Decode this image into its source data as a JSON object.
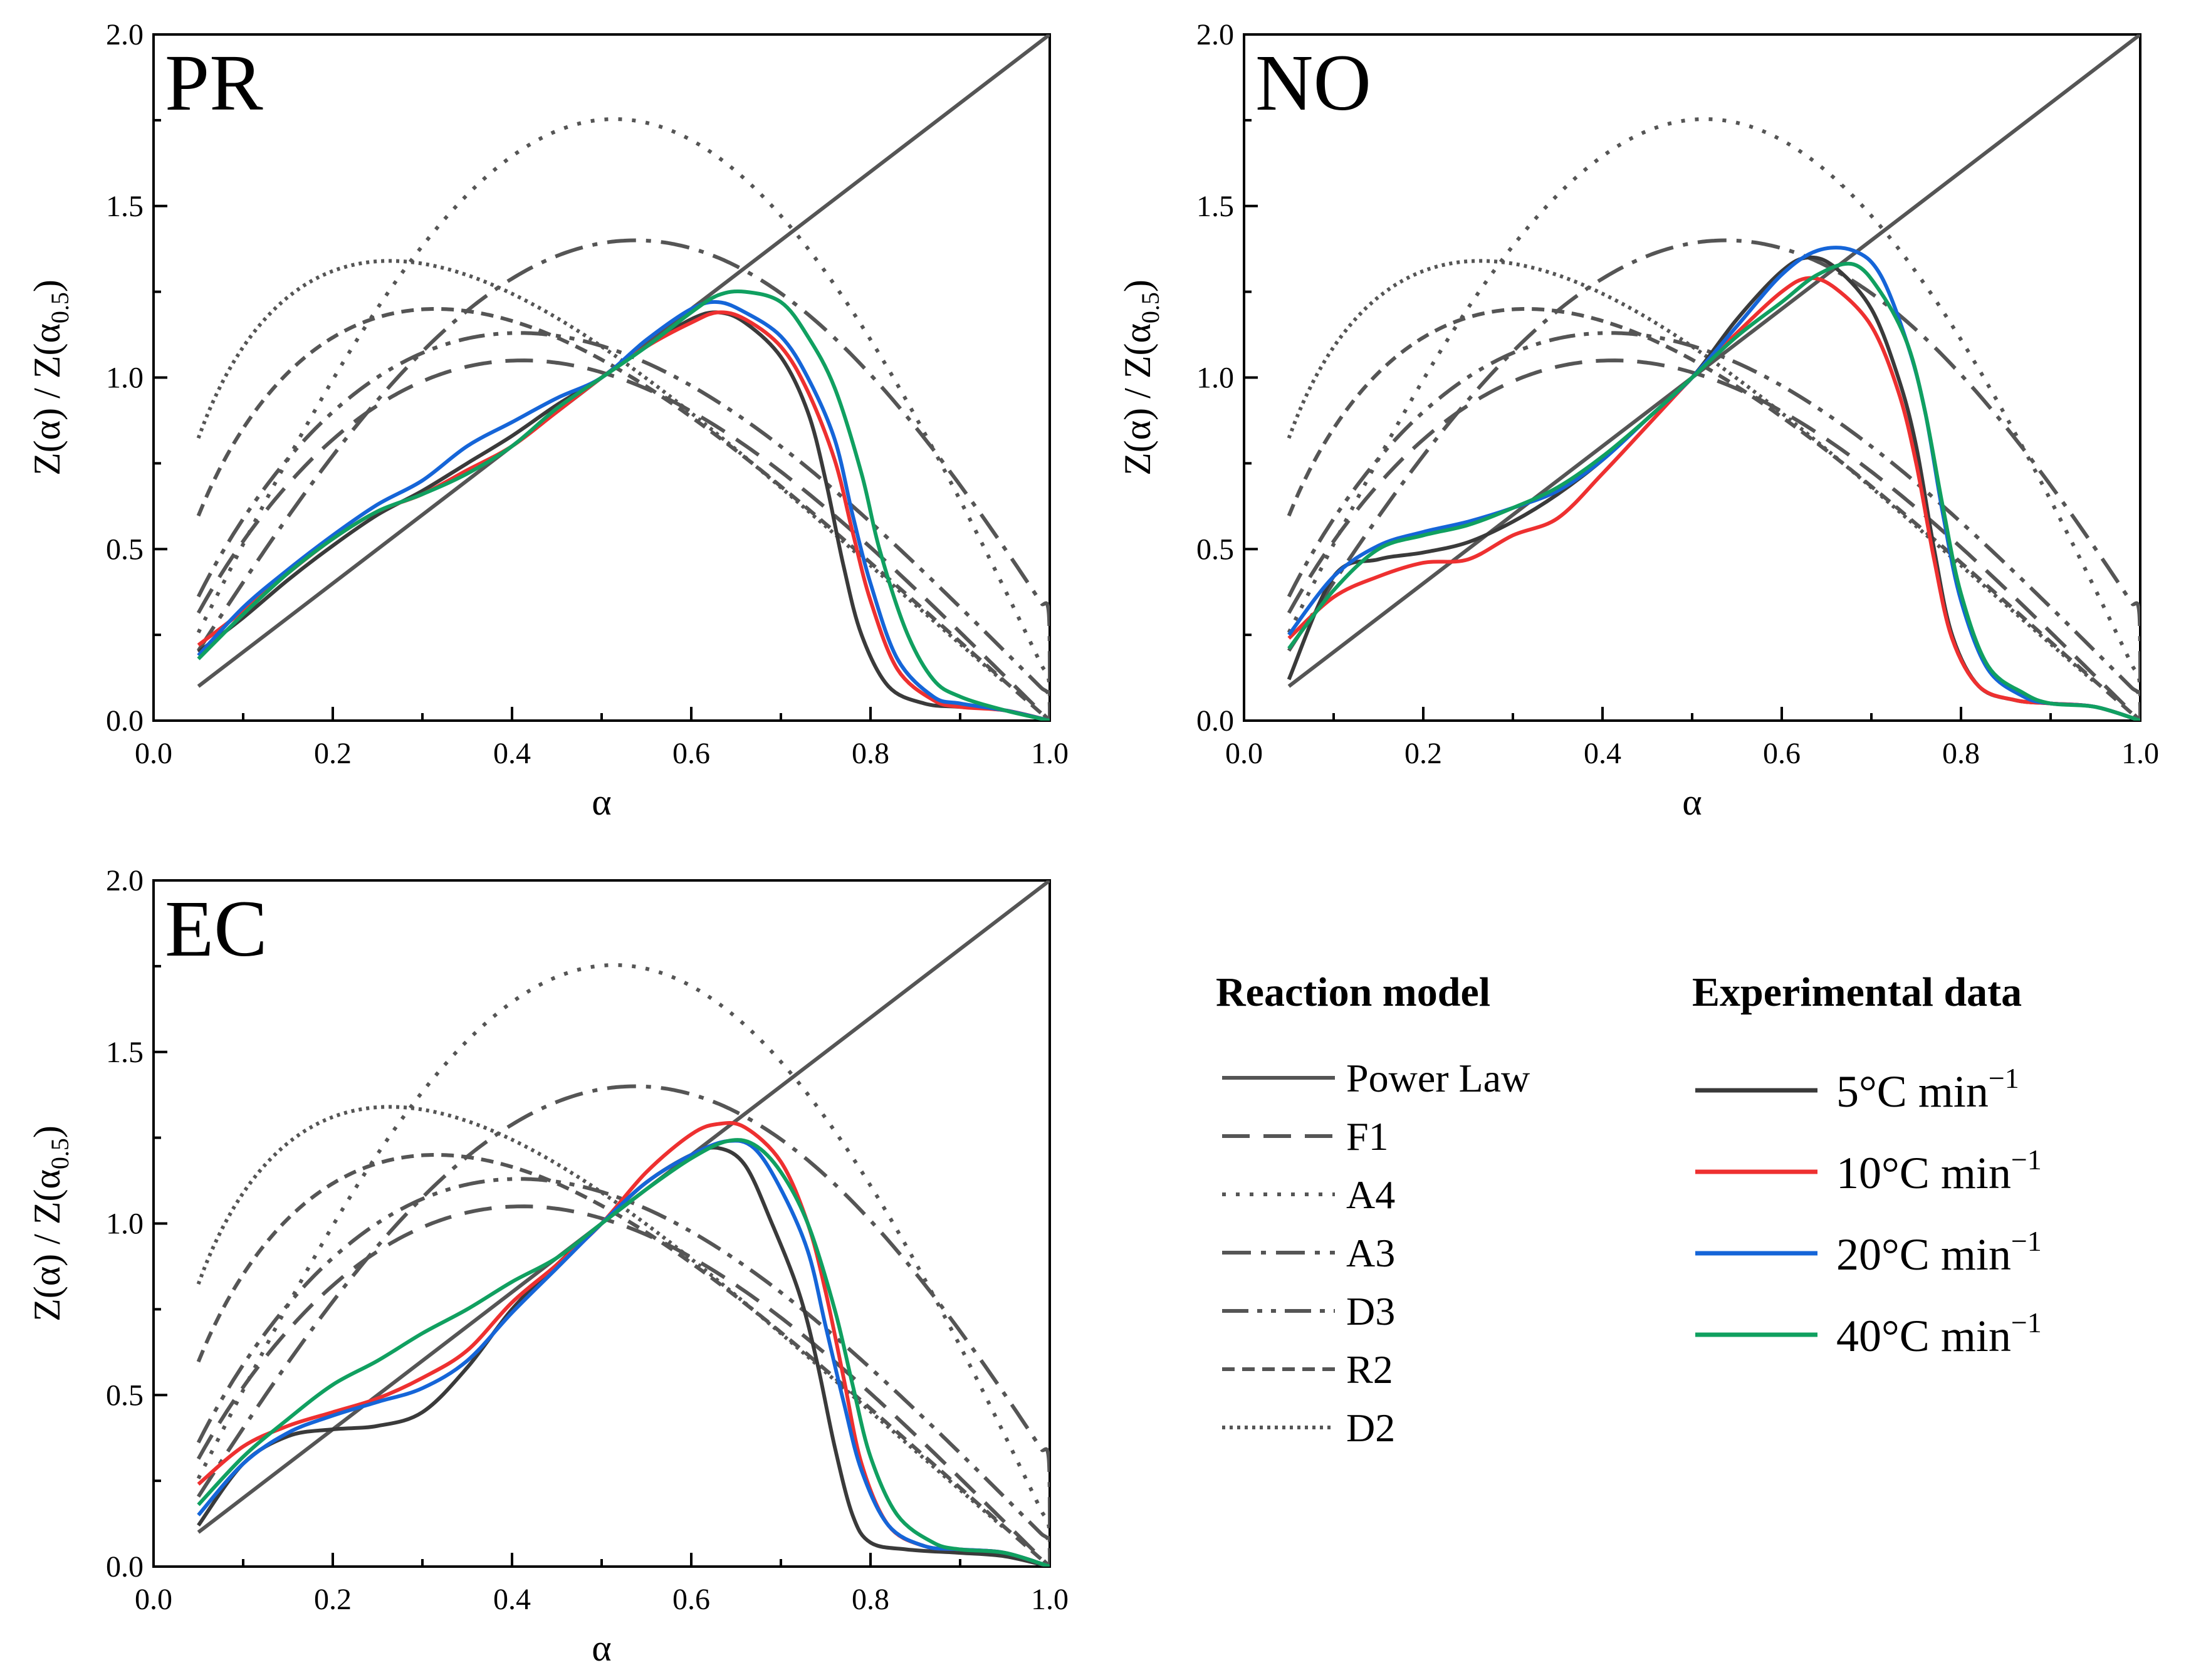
{
  "chart_data": [
    {
      "type": "line",
      "title": "PR",
      "xlabel": "α",
      "ylabel": "Z(α) / Z(α0.5)",
      "xlim": [
        0.0,
        1.0
      ],
      "ylim": [
        0.0,
        2.0
      ],
      "xticks": [
        "0.0",
        "0.2",
        "0.4",
        "0.6",
        "0.8",
        "1.0"
      ],
      "yticks": [
        "0.0",
        "0.5",
        "1.0",
        "1.5",
        "2.0"
      ],
      "experimental": [
        {
          "name": "5°C min⁻¹",
          "x": [
            0.05,
            0.1,
            0.15,
            0.2,
            0.25,
            0.3,
            0.35,
            0.4,
            0.45,
            0.5,
            0.55,
            0.6,
            0.63,
            0.66,
            0.7,
            0.73,
            0.75,
            0.77,
            0.79,
            0.82,
            0.86,
            0.9,
            0.95,
            1.0
          ],
          "y": [
            0.2,
            0.3,
            0.41,
            0.51,
            0.6,
            0.67,
            0.75,
            0.83,
            0.92,
            1.0,
            1.09,
            1.17,
            1.19,
            1.16,
            1.06,
            0.9,
            0.7,
            0.45,
            0.25,
            0.1,
            0.05,
            0.04,
            0.03,
            0.0
          ]
        },
        {
          "name": "10°C min⁻¹",
          "x": [
            0.05,
            0.1,
            0.15,
            0.2,
            0.25,
            0.3,
            0.35,
            0.4,
            0.45,
            0.5,
            0.55,
            0.6,
            0.63,
            0.66,
            0.7,
            0.73,
            0.76,
            0.78,
            0.8,
            0.83,
            0.87,
            0.9,
            0.95,
            1.0
          ],
          "y": [
            0.22,
            0.32,
            0.43,
            0.53,
            0.61,
            0.66,
            0.73,
            0.8,
            0.9,
            1.0,
            1.09,
            1.16,
            1.19,
            1.17,
            1.09,
            0.96,
            0.76,
            0.55,
            0.35,
            0.15,
            0.06,
            0.04,
            0.03,
            0.0
          ]
        },
        {
          "name": "20°C min⁻¹",
          "x": [
            0.05,
            0.1,
            0.15,
            0.2,
            0.25,
            0.3,
            0.35,
            0.4,
            0.45,
            0.5,
            0.55,
            0.6,
            0.63,
            0.66,
            0.7,
            0.73,
            0.76,
            0.78,
            0.8,
            0.83,
            0.87,
            0.9,
            0.95,
            1.0
          ],
          "y": [
            0.19,
            0.33,
            0.44,
            0.54,
            0.63,
            0.7,
            0.8,
            0.87,
            0.94,
            1.0,
            1.11,
            1.2,
            1.22,
            1.19,
            1.12,
            1.0,
            0.82,
            0.6,
            0.4,
            0.18,
            0.07,
            0.05,
            0.03,
            0.0
          ]
        },
        {
          "name": "40°C min⁻¹",
          "x": [
            0.05,
            0.1,
            0.15,
            0.2,
            0.25,
            0.3,
            0.35,
            0.4,
            0.45,
            0.5,
            0.55,
            0.6,
            0.63,
            0.66,
            0.7,
            0.73,
            0.76,
            0.79,
            0.81,
            0.84,
            0.87,
            0.9,
            0.95,
            1.0
          ],
          "y": [
            0.18,
            0.31,
            0.43,
            0.53,
            0.61,
            0.66,
            0.72,
            0.8,
            0.91,
            1.0,
            1.09,
            1.19,
            1.24,
            1.25,
            1.22,
            1.12,
            0.97,
            0.72,
            0.5,
            0.26,
            0.12,
            0.07,
            0.03,
            0.0
          ]
        }
      ]
    },
    {
      "type": "line",
      "title": "NO",
      "xlabel": "α",
      "ylabel": "Z(α) / Z(α0.5)",
      "xlim": [
        0.0,
        1.0
      ],
      "ylim": [
        0.0,
        2.0
      ],
      "xticks": [
        "0.0",
        "0.2",
        "0.4",
        "0.6",
        "0.8",
        "1.0"
      ],
      "yticks": [
        "0.0",
        "0.5",
        "1.0",
        "1.5",
        "2.0"
      ],
      "experimental": [
        {
          "name": "5°C min⁻¹",
          "x": [
            0.05,
            0.1,
            0.15,
            0.2,
            0.25,
            0.3,
            0.35,
            0.4,
            0.45,
            0.5,
            0.55,
            0.6,
            0.63,
            0.66,
            0.7,
            0.73,
            0.75,
            0.77,
            0.79,
            0.82,
            0.86,
            0.9,
            0.95,
            1.0
          ],
          "y": [
            0.12,
            0.42,
            0.47,
            0.49,
            0.52,
            0.58,
            0.66,
            0.76,
            0.88,
            1.0,
            1.17,
            1.31,
            1.35,
            1.32,
            1.2,
            1.0,
            0.8,
            0.5,
            0.25,
            0.1,
            0.06,
            0.05,
            0.04,
            0.0
          ]
        },
        {
          "name": "10°C min⁻¹",
          "x": [
            0.05,
            0.1,
            0.15,
            0.2,
            0.25,
            0.3,
            0.35,
            0.4,
            0.45,
            0.5,
            0.55,
            0.6,
            0.63,
            0.66,
            0.7,
            0.73,
            0.75,
            0.77,
            0.79,
            0.82,
            0.86,
            0.9,
            0.95,
            1.0
          ],
          "y": [
            0.24,
            0.36,
            0.42,
            0.46,
            0.47,
            0.54,
            0.59,
            0.72,
            0.86,
            1.0,
            1.13,
            1.25,
            1.29,
            1.26,
            1.15,
            0.96,
            0.75,
            0.47,
            0.24,
            0.1,
            0.06,
            0.05,
            0.04,
            0.0
          ]
        },
        {
          "name": "20°C min⁻¹",
          "x": [
            0.05,
            0.1,
            0.15,
            0.2,
            0.25,
            0.3,
            0.35,
            0.4,
            0.45,
            0.5,
            0.55,
            0.6,
            0.64,
            0.68,
            0.71,
            0.74,
            0.76,
            0.78,
            0.8,
            0.83,
            0.87,
            0.9,
            0.95,
            1.0
          ],
          "y": [
            0.25,
            0.42,
            0.51,
            0.55,
            0.58,
            0.62,
            0.67,
            0.76,
            0.88,
            1.0,
            1.15,
            1.3,
            1.37,
            1.37,
            1.3,
            1.1,
            0.9,
            0.6,
            0.35,
            0.15,
            0.07,
            0.05,
            0.04,
            0.0
          ]
        },
        {
          "name": "40°C min⁻¹",
          "x": [
            0.05,
            0.1,
            0.15,
            0.2,
            0.25,
            0.3,
            0.35,
            0.4,
            0.45,
            0.5,
            0.55,
            0.6,
            0.64,
            0.68,
            0.71,
            0.74,
            0.76,
            0.78,
            0.8,
            0.83,
            0.87,
            0.9,
            0.95,
            1.0
          ],
          "y": [
            0.21,
            0.38,
            0.5,
            0.54,
            0.57,
            0.62,
            0.68,
            0.77,
            0.88,
            1.0,
            1.12,
            1.22,
            1.3,
            1.33,
            1.25,
            1.1,
            0.9,
            0.62,
            0.37,
            0.16,
            0.08,
            0.05,
            0.04,
            0.0
          ]
        }
      ]
    },
    {
      "type": "line",
      "title": "EC",
      "xlabel": "α",
      "ylabel": "Z(α) / Z(α0.5)",
      "xlim": [
        0.0,
        1.0
      ],
      "ylim": [
        0.0,
        2.0
      ],
      "xticks": [
        "0.0",
        "0.2",
        "0.4",
        "0.6",
        "0.8",
        "1.0"
      ],
      "yticks": [
        "0.0",
        "0.5",
        "1.0",
        "1.5",
        "2.0"
      ],
      "experimental": [
        {
          "name": "5°C min⁻¹",
          "x": [
            0.05,
            0.1,
            0.15,
            0.2,
            0.25,
            0.3,
            0.35,
            0.4,
            0.45,
            0.5,
            0.55,
            0.6,
            0.63,
            0.66,
            0.69,
            0.72,
            0.74,
            0.76,
            0.78,
            0.8,
            0.84,
            0.9,
            0.95,
            1.0
          ],
          "y": [
            0.12,
            0.3,
            0.38,
            0.4,
            0.41,
            0.45,
            0.58,
            0.75,
            0.88,
            1.0,
            1.12,
            1.2,
            1.22,
            1.17,
            1.0,
            0.8,
            0.6,
            0.35,
            0.15,
            0.07,
            0.05,
            0.04,
            0.03,
            0.0
          ]
        },
        {
          "name": "10°C min⁻¹",
          "x": [
            0.05,
            0.1,
            0.15,
            0.2,
            0.25,
            0.3,
            0.35,
            0.4,
            0.45,
            0.5,
            0.55,
            0.6,
            0.63,
            0.66,
            0.7,
            0.73,
            0.75,
            0.77,
            0.79,
            0.82,
            0.86,
            0.9,
            0.95,
            1.0
          ],
          "y": [
            0.24,
            0.35,
            0.41,
            0.45,
            0.49,
            0.55,
            0.63,
            0.77,
            0.88,
            1.0,
            1.15,
            1.26,
            1.29,
            1.28,
            1.18,
            1.0,
            0.8,
            0.55,
            0.3,
            0.12,
            0.06,
            0.05,
            0.04,
            0.0
          ]
        },
        {
          "name": "20°C min⁻¹",
          "x": [
            0.05,
            0.1,
            0.15,
            0.2,
            0.25,
            0.3,
            0.35,
            0.4,
            0.45,
            0.5,
            0.55,
            0.6,
            0.64,
            0.67,
            0.7,
            0.73,
            0.75,
            0.77,
            0.79,
            0.82,
            0.86,
            0.9,
            0.95,
            1.0
          ],
          "y": [
            0.15,
            0.3,
            0.39,
            0.44,
            0.48,
            0.52,
            0.6,
            0.74,
            0.87,
            1.0,
            1.12,
            1.2,
            1.24,
            1.22,
            1.1,
            0.92,
            0.7,
            0.48,
            0.28,
            0.12,
            0.06,
            0.05,
            0.04,
            0.0
          ]
        },
        {
          "name": "40°C min⁻¹",
          "x": [
            0.05,
            0.1,
            0.15,
            0.2,
            0.25,
            0.3,
            0.35,
            0.4,
            0.45,
            0.5,
            0.55,
            0.6,
            0.64,
            0.67,
            0.7,
            0.73,
            0.76,
            0.78,
            0.8,
            0.83,
            0.87,
            0.9,
            0.95,
            1.0
          ],
          "y": [
            0.18,
            0.32,
            0.43,
            0.53,
            0.6,
            0.68,
            0.75,
            0.83,
            0.9,
            1.0,
            1.1,
            1.19,
            1.24,
            1.23,
            1.15,
            1.0,
            0.75,
            0.53,
            0.32,
            0.15,
            0.07,
            0.05,
            0.04,
            0.0
          ]
        }
      ]
    }
  ],
  "legend": {
    "reaction_model_title": "Reaction model",
    "experimental_title": "Experimental data",
    "models": [
      {
        "name": "Power Law",
        "dash": "solid"
      },
      {
        "name": "F1",
        "dash": "long-dash"
      },
      {
        "name": "A4",
        "dash": "dot"
      },
      {
        "name": "A3",
        "dash": "dash-dot"
      },
      {
        "name": "D3",
        "dash": "dash-dot-dot"
      },
      {
        "name": "R2",
        "dash": "short-dash"
      },
      {
        "name": "D2",
        "dash": "fine-dot"
      }
    ],
    "rates": [
      {
        "value": "5°C min",
        "exp": "−1",
        "color": "#3a3a3a"
      },
      {
        "value": "10°C min",
        "exp": "−1",
        "color": "#ee3030"
      },
      {
        "value": "20°C min",
        "exp": "−1",
        "color": "#1565d8"
      },
      {
        "value": "40°C min",
        "exp": "−1",
        "color": "#10a060"
      }
    ]
  },
  "colors": {
    "model_lines": "#555555",
    "axis": "#000000"
  }
}
